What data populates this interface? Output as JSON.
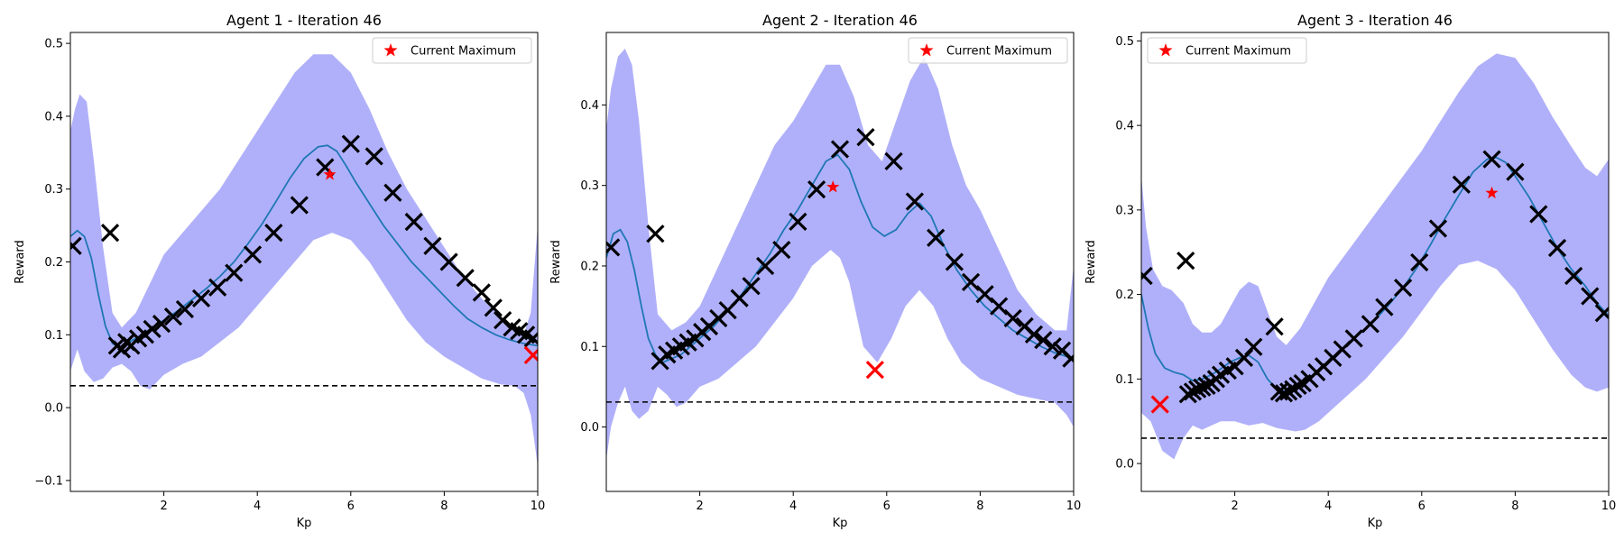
{
  "colors": {
    "band": "#b0b0fa",
    "mean": "#1f77b4",
    "sample": "#000000",
    "current": "#ff0000",
    "baseline": "#000000"
  },
  "chart_data": [
    {
      "type": "line",
      "title": "Agent 1 - Iteration 46",
      "xlabel": "Kp",
      "ylabel": "Reward",
      "xlim": [
        0,
        10
      ],
      "ylim": [
        -0.115,
        0.515
      ],
      "xticks": [
        "2",
        "4",
        "6",
        "8",
        "10"
      ],
      "yticks": [
        "−0.1",
        "0.0",
        "0.1",
        "0.2",
        "0.3",
        "0.4",
        "0.5"
      ],
      "legend": {
        "label": "Current Maximum",
        "position": "top-right"
      },
      "baseline_y": 0.03,
      "mean_curve": {
        "x": [
          0,
          0.15,
          0.3,
          0.45,
          0.6,
          0.75,
          0.9,
          1.05,
          1.2,
          1.4,
          1.6,
          1.8,
          2.0,
          2.3,
          2.6,
          2.9,
          3.2,
          3.5,
          3.8,
          4.1,
          4.4,
          4.7,
          5.0,
          5.3,
          5.5,
          5.7,
          5.9,
          6.1,
          6.4,
          6.7,
          7.0,
          7.3,
          7.6,
          7.9,
          8.2,
          8.5,
          8.8,
          9.1,
          9.4,
          9.7,
          10
        ],
        "y": [
          0.235,
          0.243,
          0.235,
          0.205,
          0.155,
          0.112,
          0.088,
          0.083,
          0.088,
          0.095,
          0.103,
          0.112,
          0.12,
          0.133,
          0.148,
          0.163,
          0.18,
          0.2,
          0.225,
          0.252,
          0.283,
          0.315,
          0.342,
          0.358,
          0.36,
          0.352,
          0.332,
          0.31,
          0.28,
          0.25,
          0.225,
          0.2,
          0.18,
          0.16,
          0.14,
          0.122,
          0.11,
          0.1,
          0.093,
          0.088,
          0.085
        ]
      },
      "upper_band": {
        "x": [
          0,
          0.1,
          0.2,
          0.35,
          0.5,
          0.7,
          0.9,
          1.1,
          1.4,
          1.7,
          2.0,
          2.4,
          2.8,
          3.2,
          3.6,
          4.0,
          4.4,
          4.8,
          5.2,
          5.6,
          6.0,
          6.4,
          6.8,
          7.2,
          7.6,
          8.0,
          8.4,
          8.8,
          9.2,
          9.5,
          9.7,
          9.85,
          10
        ],
        "y": [
          0.38,
          0.41,
          0.43,
          0.42,
          0.34,
          0.22,
          0.13,
          0.11,
          0.13,
          0.17,
          0.21,
          0.24,
          0.27,
          0.3,
          0.34,
          0.38,
          0.42,
          0.46,
          0.485,
          0.485,
          0.46,
          0.41,
          0.35,
          0.3,
          0.26,
          0.22,
          0.18,
          0.15,
          0.125,
          0.11,
          0.1,
          0.13,
          0.25
        ]
      },
      "lower_band": {
        "x": [
          0,
          0.15,
          0.3,
          0.5,
          0.7,
          0.9,
          1.1,
          1.3,
          1.5,
          1.7,
          2.0,
          2.4,
          2.8,
          3.2,
          3.6,
          4.0,
          4.4,
          4.8,
          5.2,
          5.6,
          6.0,
          6.4,
          6.8,
          7.2,
          7.6,
          8.0,
          8.4,
          8.8,
          9.2,
          9.5,
          9.7,
          9.85,
          10
        ],
        "y": [
          0.05,
          0.08,
          0.05,
          0.035,
          0.04,
          0.055,
          0.06,
          0.05,
          0.03,
          0.025,
          0.045,
          0.06,
          0.07,
          0.09,
          0.11,
          0.14,
          0.17,
          0.2,
          0.23,
          0.24,
          0.23,
          0.2,
          0.16,
          0.12,
          0.09,
          0.07,
          0.055,
          0.04,
          0.032,
          0.03,
          0.02,
          -0.01,
          -0.08
        ]
      },
      "samples": {
        "x": [
          0.05,
          0.85,
          1.0,
          1.1,
          1.2,
          1.3,
          1.45,
          1.6,
          1.75,
          1.95,
          2.2,
          2.45,
          2.8,
          3.15,
          3.5,
          3.9,
          4.35,
          4.9,
          5.45,
          6.0,
          6.5,
          6.9,
          7.35,
          7.75,
          8.1,
          8.45,
          8.8,
          9.05,
          9.25,
          9.45,
          9.6,
          9.75,
          9.9
        ],
        "y": [
          0.222,
          0.24,
          0.085,
          0.08,
          0.09,
          0.085,
          0.095,
          0.1,
          0.108,
          0.115,
          0.125,
          0.135,
          0.15,
          0.165,
          0.185,
          0.21,
          0.24,
          0.278,
          0.33,
          0.362,
          0.345,
          0.295,
          0.255,
          0.222,
          0.2,
          0.178,
          0.158,
          0.137,
          0.12,
          0.11,
          0.105,
          0.1,
          0.095
        ]
      },
      "current_sample": {
        "x": 9.9,
        "y": 0.072
      },
      "current_maximum": {
        "x": 5.55,
        "y": 0.32
      }
    },
    {
      "type": "line",
      "title": "Agent 2 - Iteration 46",
      "xlabel": "Kp",
      "ylabel": "Reward",
      "xlim": [
        0,
        10
      ],
      "ylim": [
        -0.08,
        0.49
      ],
      "xticks": [
        "2",
        "4",
        "6",
        "8",
        "10"
      ],
      "yticks": [
        "0.0",
        "0.1",
        "0.2",
        "0.3",
        "0.4"
      ],
      "legend": {
        "label": "Current Maximum",
        "position": "top-right"
      },
      "baseline_y": 0.031,
      "mean_curve": {
        "x": [
          0,
          0.15,
          0.3,
          0.45,
          0.6,
          0.75,
          0.9,
          1.05,
          1.2,
          1.4,
          1.6,
          1.8,
          2.0,
          2.3,
          2.6,
          2.9,
          3.2,
          3.5,
          3.8,
          4.1,
          4.4,
          4.7,
          4.95,
          5.2,
          5.45,
          5.7,
          5.95,
          6.2,
          6.45,
          6.7,
          6.95,
          7.2,
          7.5,
          7.8,
          8.1,
          8.4,
          8.7,
          9.0,
          9.3,
          9.6,
          10
        ],
        "y": [
          0.21,
          0.24,
          0.245,
          0.23,
          0.195,
          0.15,
          0.11,
          0.09,
          0.08,
          0.085,
          0.09,
          0.1,
          0.11,
          0.125,
          0.145,
          0.165,
          0.19,
          0.215,
          0.245,
          0.27,
          0.3,
          0.33,
          0.338,
          0.32,
          0.28,
          0.248,
          0.237,
          0.245,
          0.265,
          0.278,
          0.262,
          0.228,
          0.195,
          0.17,
          0.15,
          0.135,
          0.12,
          0.11,
          0.1,
          0.092,
          0.085
        ]
      },
      "upper_band": {
        "x": [
          0,
          0.1,
          0.25,
          0.4,
          0.55,
          0.7,
          0.9,
          1.1,
          1.4,
          1.7,
          2.0,
          2.4,
          2.8,
          3.2,
          3.6,
          4.0,
          4.4,
          4.7,
          5.0,
          5.3,
          5.6,
          5.9,
          6.2,
          6.5,
          6.8,
          7.1,
          7.4,
          7.7,
          8.0,
          8.4,
          8.8,
          9.2,
          9.6,
          9.85,
          10
        ],
        "y": [
          0.37,
          0.42,
          0.46,
          0.47,
          0.45,
          0.38,
          0.25,
          0.14,
          0.12,
          0.13,
          0.15,
          0.2,
          0.25,
          0.3,
          0.35,
          0.38,
          0.42,
          0.45,
          0.45,
          0.41,
          0.35,
          0.33,
          0.38,
          0.43,
          0.46,
          0.42,
          0.35,
          0.3,
          0.27,
          0.22,
          0.17,
          0.14,
          0.12,
          0.12,
          0.2
        ]
      },
      "lower_band": {
        "x": [
          0,
          0.1,
          0.25,
          0.4,
          0.55,
          0.7,
          0.9,
          1.1,
          1.3,
          1.5,
          1.7,
          2.0,
          2.4,
          2.8,
          3.2,
          3.6,
          4.0,
          4.4,
          4.8,
          5.0,
          5.2,
          5.5,
          5.8,
          6.1,
          6.4,
          6.7,
          7.0,
          7.3,
          7.6,
          8.0,
          8.4,
          8.8,
          9.2,
          9.6,
          9.85,
          10
        ],
        "y": [
          -0.04,
          0.0,
          0.03,
          0.05,
          0.02,
          0.01,
          0.02,
          0.05,
          0.04,
          0.025,
          0.03,
          0.05,
          0.06,
          0.08,
          0.1,
          0.13,
          0.16,
          0.2,
          0.22,
          0.21,
          0.18,
          0.1,
          0.08,
          0.11,
          0.15,
          0.17,
          0.15,
          0.11,
          0.08,
          0.06,
          0.05,
          0.04,
          0.035,
          0.03,
          0.015,
          0.0
        ]
      },
      "samples": {
        "x": [
          0.1,
          1.05,
          1.15,
          1.3,
          1.45,
          1.6,
          1.75,
          1.9,
          2.05,
          2.2,
          2.4,
          2.6,
          2.85,
          3.1,
          3.4,
          3.75,
          4.1,
          4.5,
          5.0,
          5.55,
          6.15,
          6.6,
          7.05,
          7.45,
          7.8,
          8.1,
          8.4,
          8.7,
          8.95,
          9.15,
          9.35,
          9.55,
          9.75,
          9.95
        ],
        "y": [
          0.223,
          0.24,
          0.082,
          0.09,
          0.095,
          0.1,
          0.105,
          0.11,
          0.118,
          0.125,
          0.135,
          0.145,
          0.16,
          0.175,
          0.2,
          0.22,
          0.255,
          0.295,
          0.345,
          0.36,
          0.33,
          0.28,
          0.235,
          0.205,
          0.18,
          0.165,
          0.15,
          0.135,
          0.125,
          0.115,
          0.108,
          0.1,
          0.095,
          0.085
        ]
      },
      "current_sample": {
        "x": 5.75,
        "y": 0.071
      },
      "current_maximum": {
        "x": 4.85,
        "y": 0.298
      }
    },
    {
      "type": "line",
      "title": "Agent 3 - Iteration 46",
      "xlabel": "Kp",
      "ylabel": "Reward",
      "xlim": [
        0,
        10
      ],
      "ylim": [
        -0.033,
        0.51
      ],
      "xticks": [
        "2",
        "4",
        "6",
        "8",
        "10"
      ],
      "yticks": [
        "0.0",
        "0.1",
        "0.2",
        "0.3",
        "0.4",
        "0.5"
      ],
      "legend": {
        "label": "Current Maximum",
        "position": "top-left"
      },
      "baseline_y": 0.03,
      "mean_curve": {
        "x": [
          0,
          0.15,
          0.3,
          0.5,
          0.7,
          0.9,
          1.1,
          1.3,
          1.5,
          1.7,
          1.9,
          2.1,
          2.3,
          2.5,
          2.7,
          2.9,
          3.1,
          3.3,
          3.5,
          3.8,
          4.1,
          4.4,
          4.7,
          5.0,
          5.3,
          5.6,
          5.9,
          6.2,
          6.5,
          6.8,
          7.1,
          7.4,
          7.6,
          7.8,
          8.0,
          8.3,
          8.6,
          8.9,
          9.2,
          9.5,
          9.75,
          10
        ],
        "y": [
          0.2,
          0.16,
          0.13,
          0.113,
          0.108,
          0.105,
          0.098,
          0.1,
          0.105,
          0.112,
          0.12,
          0.125,
          0.128,
          0.12,
          0.1,
          0.088,
          0.085,
          0.09,
          0.098,
          0.11,
          0.125,
          0.14,
          0.155,
          0.17,
          0.188,
          0.208,
          0.232,
          0.26,
          0.29,
          0.318,
          0.345,
          0.36,
          0.362,
          0.356,
          0.34,
          0.315,
          0.285,
          0.255,
          0.23,
          0.21,
          0.19,
          0.175
        ]
      },
      "upper_band": {
        "x": [
          0,
          0.1,
          0.25,
          0.45,
          0.65,
          0.9,
          1.1,
          1.3,
          1.5,
          1.7,
          1.9,
          2.1,
          2.3,
          2.5,
          2.7,
          2.9,
          3.1,
          3.4,
          3.7,
          4.0,
          4.4,
          4.8,
          5.2,
          5.6,
          6.0,
          6.4,
          6.8,
          7.2,
          7.6,
          8.0,
          8.4,
          8.8,
          9.2,
          9.5,
          9.75,
          10
        ],
        "y": [
          0.34,
          0.28,
          0.23,
          0.21,
          0.205,
          0.19,
          0.165,
          0.155,
          0.155,
          0.165,
          0.185,
          0.205,
          0.215,
          0.21,
          0.18,
          0.15,
          0.14,
          0.16,
          0.19,
          0.22,
          0.25,
          0.28,
          0.31,
          0.34,
          0.37,
          0.405,
          0.44,
          0.47,
          0.485,
          0.48,
          0.45,
          0.41,
          0.375,
          0.35,
          0.34,
          0.36
        ]
      },
      "lower_band": {
        "x": [
          0,
          0.2,
          0.45,
          0.7,
          0.9,
          1.1,
          1.3,
          1.5,
          1.7,
          2.0,
          2.3,
          2.6,
          2.9,
          3.1,
          3.3,
          3.5,
          3.8,
          4.1,
          4.4,
          4.8,
          5.2,
          5.6,
          6.0,
          6.4,
          6.8,
          7.2,
          7.6,
          8.0,
          8.4,
          8.8,
          9.2,
          9.5,
          9.75,
          10
        ],
        "y": [
          0.06,
          0.05,
          0.015,
          0.005,
          0.03,
          0.045,
          0.04,
          0.045,
          0.05,
          0.05,
          0.045,
          0.048,
          0.042,
          0.04,
          0.038,
          0.04,
          0.05,
          0.065,
          0.08,
          0.1,
          0.125,
          0.15,
          0.18,
          0.21,
          0.235,
          0.24,
          0.23,
          0.205,
          0.17,
          0.135,
          0.105,
          0.09,
          0.085,
          0.09
        ]
      },
      "samples": {
        "x": [
          0.05,
          0.95,
          1.0,
          1.1,
          1.2,
          1.3,
          1.4,
          1.5,
          1.6,
          1.7,
          1.85,
          2.0,
          2.2,
          2.4,
          2.85,
          2.95,
          3.05,
          3.15,
          3.25,
          3.35,
          3.45,
          3.6,
          3.75,
          3.9,
          4.1,
          4.3,
          4.55,
          4.9,
          5.2,
          5.6,
          5.95,
          6.35,
          6.85,
          7.5,
          8.0,
          8.5,
          8.9,
          9.25,
          9.6,
          9.9
        ],
        "y": [
          0.222,
          0.24,
          0.082,
          0.085,
          0.088,
          0.09,
          0.092,
          0.095,
          0.1,
          0.105,
          0.11,
          0.115,
          0.125,
          0.138,
          0.162,
          0.085,
          0.083,
          0.085,
          0.088,
          0.092,
          0.095,
          0.1,
          0.108,
          0.115,
          0.125,
          0.135,
          0.148,
          0.165,
          0.185,
          0.208,
          0.238,
          0.278,
          0.33,
          0.36,
          0.345,
          0.295,
          0.255,
          0.222,
          0.198,
          0.178
        ]
      },
      "current_sample": {
        "x": 0.4,
        "y": 0.07
      },
      "current_maximum": {
        "x": 7.5,
        "y": 0.32
      }
    }
  ]
}
